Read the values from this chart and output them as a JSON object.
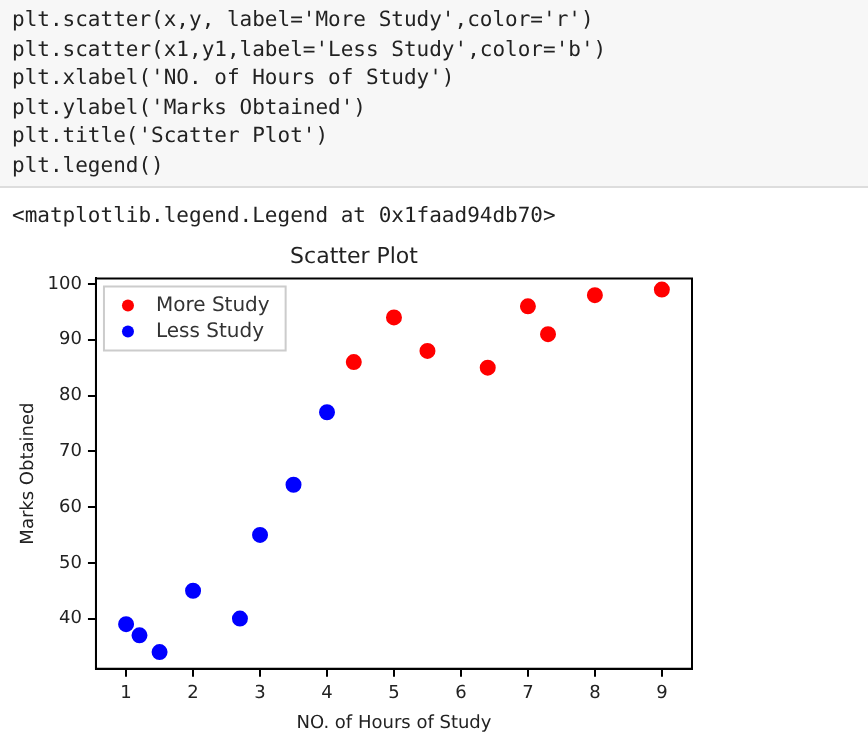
{
  "chart_data": {
    "type": "scatter",
    "title": "Scatter Plot",
    "xlabel": "NO. of Hours of Study",
    "ylabel": "Marks Obtained",
    "annotations": [
      "plt.scatter(x,y, label='More Study',color='r')",
      "plt.scatter(x1,y1,label='Less Study',color='b')",
      "plt.xlabel('NO. of Hours of Study')",
      "plt.ylabel('Marks Obtained')",
      "plt.title('Scatter Plot')",
      "plt.legend()",
      "<matplotlib.legend.Legend at 0x1faad94db70>"
    ],
    "series": [
      {
        "name": "More Study",
        "color": "#ff0000",
        "x": [
          4.4,
          5,
          5.5,
          6.4,
          7,
          7.3,
          8,
          9
        ],
        "values": [
          86,
          94,
          88,
          85,
          96,
          91,
          98,
          99
        ]
      },
      {
        "name": "Less Study",
        "color": "#0000ff",
        "x": [
          1,
          1.2,
          1.5,
          2,
          2.7,
          3,
          3.5,
          4
        ],
        "values": [
          39,
          37,
          34,
          45,
          40,
          55,
          64,
          77
        ]
      }
    ],
    "xlim": [
      0.55,
      9.45
    ],
    "ylim": [
      31,
      101
    ],
    "xticks": [
      1,
      2,
      3,
      4,
      5,
      6,
      7,
      8,
      9
    ],
    "yticks": [
      40,
      50,
      60,
      70,
      80,
      90,
      100
    ],
    "legend": "top left",
    "marker": "circle",
    "grid": false
  }
}
